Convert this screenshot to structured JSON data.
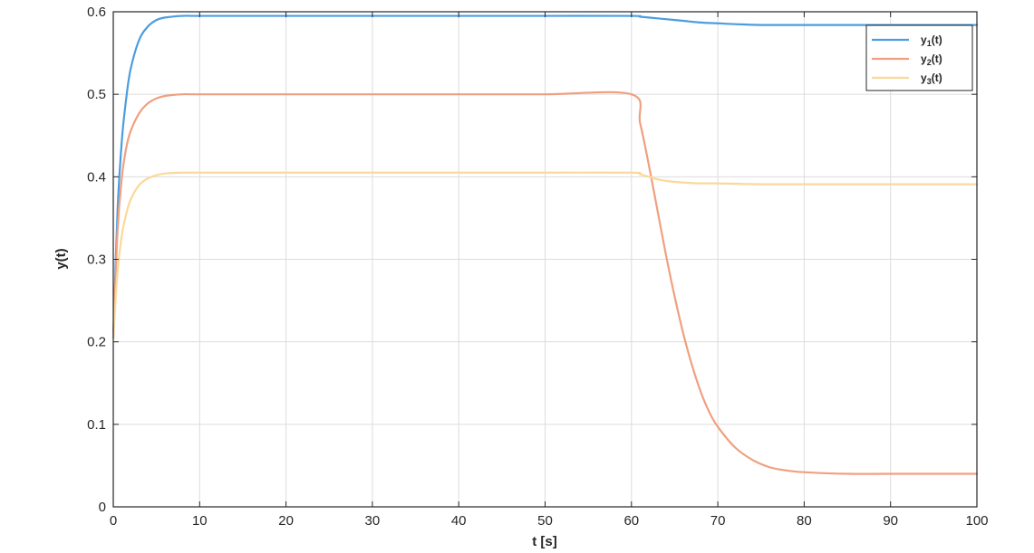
{
  "chart_data": {
    "type": "line",
    "title": "",
    "xlabel": "t [s]",
    "ylabel": "y(t)",
    "xlim": [
      0,
      100
    ],
    "ylim": [
      0,
      0.6
    ],
    "xticks": [
      0,
      10,
      20,
      30,
      40,
      50,
      60,
      70,
      80,
      90,
      100
    ],
    "yticks": [
      0,
      0.1,
      0.2,
      0.3,
      0.4,
      0.5,
      0.6
    ],
    "xtick_labels": [
      "0",
      "10",
      "20",
      "30",
      "40",
      "50",
      "60",
      "70",
      "80",
      "90",
      "100"
    ],
    "ytick_labels": [
      "0",
      "0.1",
      "0.2",
      "0.3",
      "0.4",
      "0.5",
      "0.6"
    ],
    "grid": true,
    "legend_position": "top-right",
    "series": [
      {
        "name": "y1(t)",
        "name_base": "y",
        "name_sub": "1",
        "name_suffix": "(t)",
        "color": "#4a9de0",
        "x": [
          0,
          0.5,
          1,
          1.5,
          2,
          3,
          4,
          5,
          6,
          8,
          10,
          20,
          30,
          40,
          50,
          60,
          61,
          62,
          64,
          66,
          68,
          70,
          72,
          75,
          80,
          90,
          100
        ],
        "y": [
          0.205,
          0.36,
          0.445,
          0.495,
          0.53,
          0.566,
          0.582,
          0.59,
          0.593,
          0.595,
          0.595,
          0.595,
          0.595,
          0.595,
          0.595,
          0.595,
          0.594,
          0.593,
          0.591,
          0.589,
          0.587,
          0.586,
          0.585,
          0.584,
          0.584,
          0.584,
          0.584
        ]
      },
      {
        "name": "y2(t)",
        "name_base": "y",
        "name_sub": "2",
        "name_suffix": "(t)",
        "color": "#f0a080",
        "x": [
          0,
          0.5,
          1,
          1.5,
          2,
          3,
          4,
          5,
          6,
          8,
          10,
          20,
          30,
          40,
          50,
          60,
          61,
          62,
          63,
          64,
          65,
          66,
          67,
          68,
          69,
          70,
          72,
          74,
          76,
          78,
          80,
          85,
          90,
          100
        ],
        "y": [
          0.205,
          0.335,
          0.4,
          0.435,
          0.455,
          0.477,
          0.489,
          0.495,
          0.498,
          0.5,
          0.5,
          0.5,
          0.5,
          0.5,
          0.5,
          0.5,
          0.465,
          0.415,
          0.36,
          0.305,
          0.255,
          0.21,
          0.172,
          0.14,
          0.115,
          0.097,
          0.072,
          0.057,
          0.048,
          0.044,
          0.042,
          0.04,
          0.04,
          0.04
        ]
      },
      {
        "name": "y3(t)",
        "name_base": "y",
        "name_sub": "3",
        "name_suffix": "(t)",
        "color": "#fbd89a",
        "x": [
          0,
          0.5,
          1,
          1.5,
          2,
          3,
          4,
          5,
          6,
          8,
          10,
          20,
          30,
          40,
          50,
          60,
          61,
          62,
          63,
          64,
          66,
          68,
          70,
          75,
          80,
          90,
          100
        ],
        "y": [
          0.205,
          0.285,
          0.33,
          0.355,
          0.372,
          0.39,
          0.398,
          0.402,
          0.404,
          0.405,
          0.405,
          0.405,
          0.405,
          0.405,
          0.405,
          0.405,
          0.403,
          0.4,
          0.397,
          0.395,
          0.393,
          0.392,
          0.392,
          0.391,
          0.391,
          0.391,
          0.391
        ]
      }
    ]
  }
}
